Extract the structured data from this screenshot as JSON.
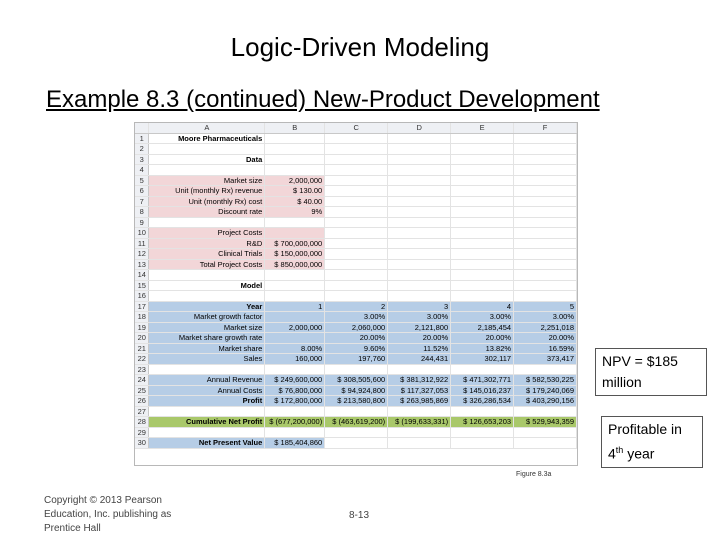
{
  "slide": {
    "title": "Logic-Driven Modeling",
    "subtitle": "Example 8.3 (continued) New-Product Development",
    "figure_caption": "Figure 8.3a",
    "callout_npv": "NPV = $185 million",
    "callout_profit_pre": "Profitable in 4",
    "callout_profit_sup": "th",
    "callout_profit_post": " year",
    "footer": "Copyright © 2013 Pearson Education, Inc. publishing as Prentice Hall",
    "page_number": "8-13"
  },
  "sheet": {
    "col_headers": [
      "A",
      "B",
      "C",
      "D",
      "E",
      "F"
    ],
    "rows": [
      {
        "n": "1",
        "a": "Moore Pharmaceuticals",
        "b": "",
        "c": "",
        "d": "",
        "e": "",
        "f": ""
      },
      {
        "n": "2",
        "a": "",
        "b": "",
        "c": "",
        "d": "",
        "e": "",
        "f": ""
      },
      {
        "n": "3",
        "a": "Data",
        "b": "",
        "c": "",
        "d": "",
        "e": "",
        "f": ""
      },
      {
        "n": "4",
        "a": "",
        "b": "",
        "c": "",
        "d": "",
        "e": "",
        "f": ""
      },
      {
        "n": "5",
        "a": "Market size",
        "b": "2,000,000",
        "c": "",
        "d": "",
        "e": "",
        "f": ""
      },
      {
        "n": "6",
        "a": "Unit (monthly Rx) revenue",
        "b": "$ 130.00",
        "c": "",
        "d": "",
        "e": "",
        "f": ""
      },
      {
        "n": "7",
        "a": "Unit (monthly Rx) cost",
        "b": "$ 40.00",
        "c": "",
        "d": "",
        "e": "",
        "f": ""
      },
      {
        "n": "8",
        "a": "Discount rate",
        "b": "9%",
        "c": "",
        "d": "",
        "e": "",
        "f": ""
      },
      {
        "n": "9",
        "a": "",
        "b": "",
        "c": "",
        "d": "",
        "e": "",
        "f": ""
      },
      {
        "n": "10",
        "a": "Project Costs",
        "b": "",
        "c": "",
        "d": "",
        "e": "",
        "f": ""
      },
      {
        "n": "11",
        "a": "R&D",
        "b": "$ 700,000,000",
        "c": "",
        "d": "",
        "e": "",
        "f": ""
      },
      {
        "n": "12",
        "a": "Clinical Trials",
        "b": "$ 150,000,000",
        "c": "",
        "d": "",
        "e": "",
        "f": ""
      },
      {
        "n": "13",
        "a": "Total Project Costs",
        "b": "$ 850,000,000",
        "c": "",
        "d": "",
        "e": "",
        "f": ""
      },
      {
        "n": "14",
        "a": "",
        "b": "",
        "c": "",
        "d": "",
        "e": "",
        "f": ""
      },
      {
        "n": "15",
        "a": "Model",
        "b": "",
        "c": "",
        "d": "",
        "e": "",
        "f": ""
      },
      {
        "n": "16",
        "a": "",
        "b": "",
        "c": "",
        "d": "",
        "e": "",
        "f": ""
      },
      {
        "n": "17",
        "a": "Year",
        "b": "1",
        "c": "2",
        "d": "3",
        "e": "4",
        "f": "5"
      },
      {
        "n": "18",
        "a": "Market growth factor",
        "b": "",
        "c": "3.00%",
        "d": "3.00%",
        "e": "3.00%",
        "f": "3.00%"
      },
      {
        "n": "19",
        "a": "Market size",
        "b": "2,000,000",
        "c": "2,060,000",
        "d": "2,121,800",
        "e": "2,185,454",
        "f": "2,251,018"
      },
      {
        "n": "20",
        "a": "Market share growth rate",
        "b": "",
        "c": "20.00%",
        "d": "20.00%",
        "e": "20.00%",
        "f": "20.00%"
      },
      {
        "n": "21",
        "a": "Market share",
        "b": "8.00%",
        "c": "9.60%",
        "d": "11.52%",
        "e": "13.82%",
        "f": "16.59%"
      },
      {
        "n": "22",
        "a": "Sales",
        "b": "160,000",
        "c": "197,760",
        "d": "244,431",
        "e": "302,117",
        "f": "373,417"
      },
      {
        "n": "23",
        "a": "",
        "b": "",
        "c": "",
        "d": "",
        "e": "",
        "f": ""
      },
      {
        "n": "24",
        "a": "Annual Revenue",
        "b": "$ 249,600,000",
        "c": "$ 308,505,600",
        "d": "$ 381,312,922",
        "e": "$ 471,302,771",
        "f": "$ 582,530,225"
      },
      {
        "n": "25",
        "a": "Annual Costs",
        "b": "$ 76,800,000",
        "c": "$ 94,924,800",
        "d": "$ 117,327,053",
        "e": "$ 145,016,237",
        "f": "$ 179,240,069"
      },
      {
        "n": "26",
        "a": "Profit",
        "b": "$ 172,800,000",
        "c": "$ 213,580,800",
        "d": "$ 263,985,869",
        "e": "$ 326,286,534",
        "f": "$ 403,290,156"
      },
      {
        "n": "27",
        "a": "",
        "b": "",
        "c": "",
        "d": "",
        "e": "",
        "f": ""
      },
      {
        "n": "28",
        "a": "Cumulative Net Profit",
        "b": "$ (677,200,000)",
        "c": "$ (463,619,200)",
        "d": "$ (199,633,331)",
        "e": "$ 126,653,203",
        "f": "$ 529,943,359"
      },
      {
        "n": "29",
        "a": "",
        "b": "",
        "c": "",
        "d": "",
        "e": "",
        "f": ""
      },
      {
        "n": "30",
        "a": "Net Present Value",
        "b": "$ 185,404,860",
        "c": "",
        "d": "",
        "e": "",
        "f": ""
      }
    ]
  }
}
